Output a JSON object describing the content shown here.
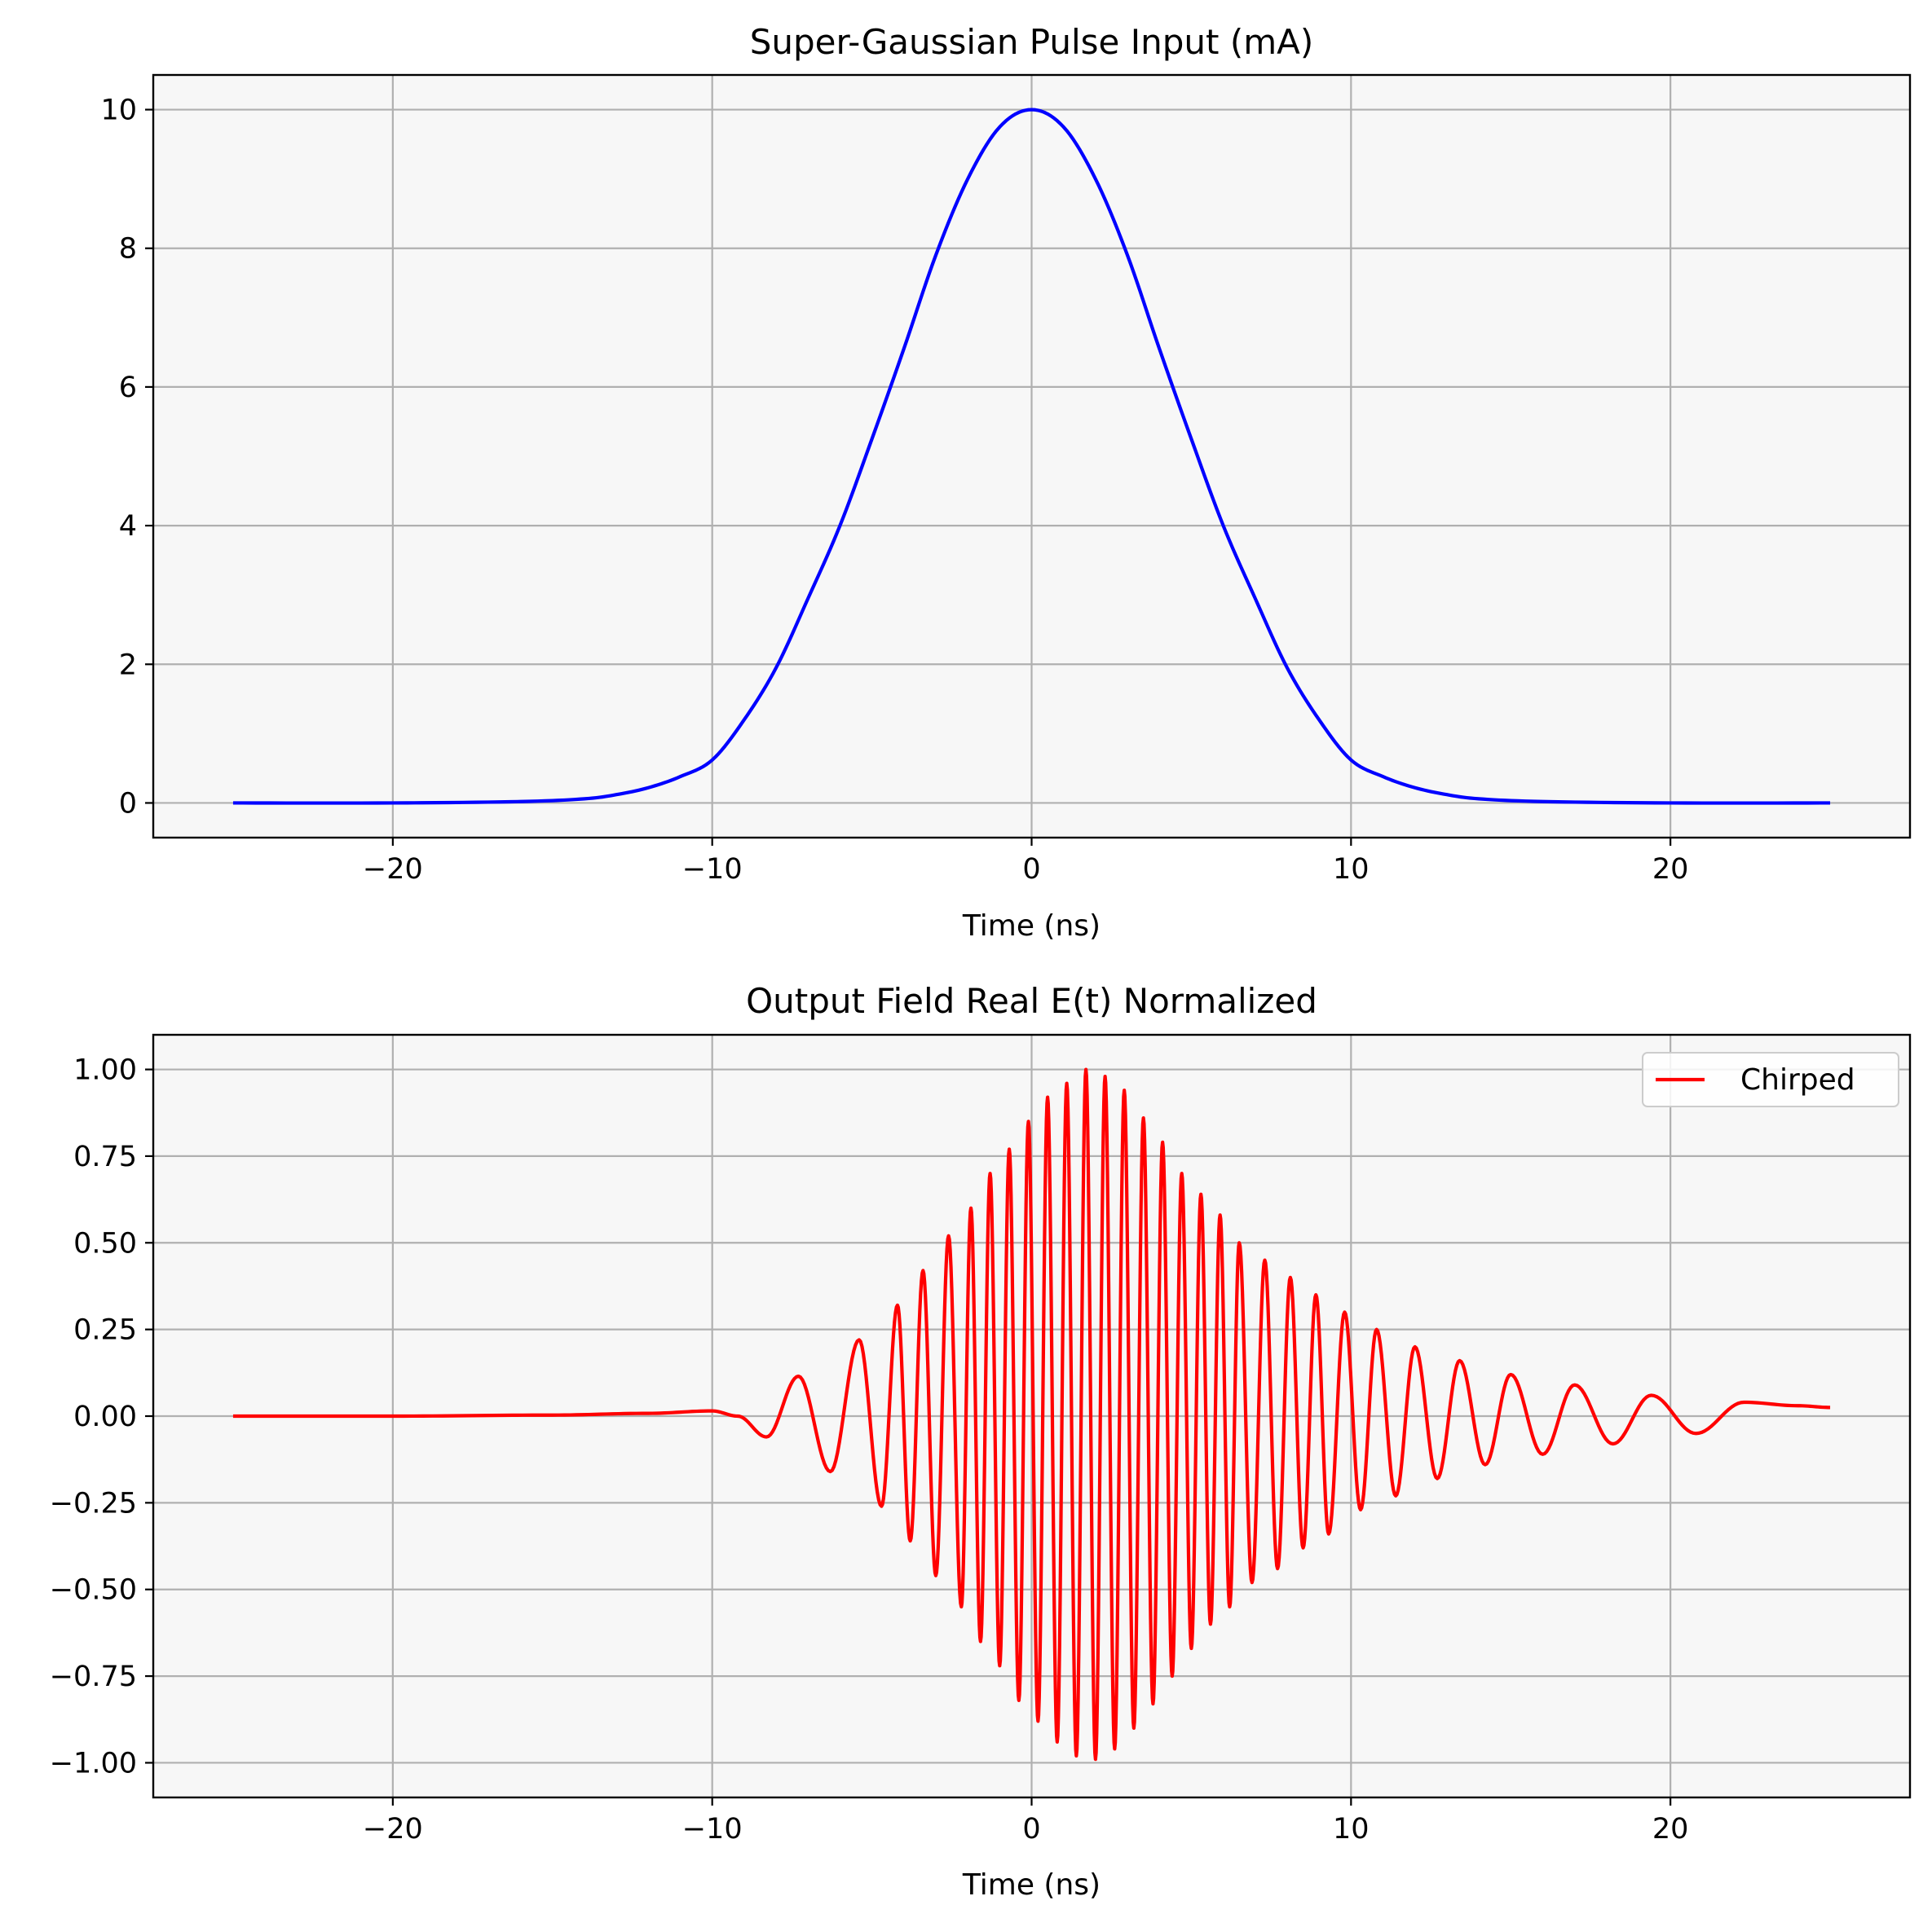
{
  "chart_data": [
    {
      "type": "line",
      "title": "Super-Gaussian Pulse Input (mA)",
      "xlabel": "Time (ns)",
      "ylabel": "",
      "xlim": [
        -27.5,
        27.5
      ],
      "ylim": [
        -0.5,
        10.5
      ],
      "xticks": [
        -20,
        -10,
        0,
        10,
        20
      ],
      "xtick_labels": [
        "−20",
        "−10",
        "0",
        "10",
        "20"
      ],
      "yticks": [
        0,
        2,
        4,
        6,
        8,
        10
      ],
      "ytick_labels": [
        "0",
        "2",
        "4",
        "6",
        "8",
        "10"
      ],
      "grid": true,
      "legend": null,
      "background": "#f7f7f7",
      "series": [
        {
          "color": "#0000ff",
          "x": [
            -25,
            -20,
            -16,
            -14,
            -13,
            -12,
            -11,
            -10,
            -9,
            -8,
            -7,
            -6,
            -5,
            -4,
            -3,
            -2,
            -1,
            0,
            1,
            2,
            3,
            4,
            5,
            6,
            7,
            8,
            9,
            10,
            11,
            12,
            13,
            14,
            16,
            20,
            25
          ],
          "y": [
            0.0,
            0.0,
            0.02,
            0.06,
            0.12,
            0.22,
            0.38,
            0.62,
            1.2,
            1.95,
            2.95,
            4.0,
            5.25,
            6.55,
            7.9,
            9.0,
            9.75,
            10.0,
            9.75,
            9.0,
            7.9,
            6.55,
            5.25,
            4.0,
            2.95,
            1.95,
            1.2,
            0.62,
            0.38,
            0.22,
            0.12,
            0.06,
            0.02,
            0.0,
            0.0
          ]
        }
      ]
    },
    {
      "type": "line",
      "title": "Output Field Real E(t) Normalized",
      "xlabel": "Time (ns)",
      "ylabel": "",
      "xlim": [
        -27.5,
        27.5
      ],
      "ylim": [
        -1.1,
        1.1
      ],
      "xticks": [
        -20,
        -10,
        0,
        10,
        20
      ],
      "xtick_labels": [
        "−20",
        "−10",
        "0",
        "10",
        "20"
      ],
      "yticks": [
        -1.0,
        -0.75,
        -0.5,
        -0.25,
        0.0,
        0.25,
        0.5,
        0.75,
        1.0
      ],
      "ytick_labels": [
        "−1.00",
        "−0.75",
        "−0.50",
        "−0.25",
        "0.00",
        "0.25",
        "0.50",
        "0.75",
        "1.00"
      ],
      "grid": true,
      "legend": "top-right",
      "background": "#f7f7f7",
      "series": [
        {
          "name": "Chirped",
          "color": "#ff0000",
          "x": [
            -25.0,
            -20.0,
            -15.0,
            -12.0,
            -10.0,
            -9.2,
            -8.3,
            -7.3,
            -6.3,
            -5.4,
            -4.7,
            -4.2,
            -3.8,
            -3.4,
            -3.0,
            -2.6,
            -2.2,
            -1.9,
            -1.6,
            -1.3,
            -1.0,
            -0.7,
            -0.4,
            -0.1,
            0.2,
            0.5,
            0.8,
            1.1,
            1.4,
            1.7,
            2.0,
            2.3,
            2.6,
            2.9,
            3.2,
            3.5,
            3.8,
            4.1,
            4.4,
            4.7,
            5.0,
            5.3,
            5.6,
            5.9,
            6.2,
            6.5,
            6.9,
            7.3,
            7.7,
            8.1,
            8.5,
            8.9,
            9.3,
            9.8,
            10.3,
            10.8,
            11.4,
            12.0,
            12.7,
            13.4,
            14.2,
            15.0,
            16.0,
            17.0,
            18.2,
            19.4,
            20.8,
            22.3,
            24.0,
            25.0
          ],
          "y": [
            0.0,
            0.0,
            0.003,
            0.008,
            0.015,
            0.0,
            -0.06,
            0.115,
            -0.16,
            0.22,
            -0.26,
            0.32,
            -0.36,
            0.42,
            -0.46,
            0.52,
            -0.55,
            0.6,
            -0.65,
            0.7,
            -0.72,
            0.77,
            -0.82,
            0.85,
            -0.88,
            0.92,
            -0.94,
            0.96,
            -0.98,
            1.0,
            -0.99,
            0.98,
            -0.96,
            0.94,
            -0.9,
            0.86,
            -0.83,
            0.79,
            -0.75,
            0.7,
            -0.67,
            0.64,
            -0.6,
            0.58,
            -0.55,
            0.5,
            -0.48,
            0.45,
            -0.44,
            0.4,
            -0.38,
            0.35,
            -0.34,
            0.3,
            -0.27,
            0.25,
            -0.23,
            0.2,
            -0.18,
            0.16,
            -0.14,
            0.12,
            -0.11,
            0.09,
            -0.08,
            0.06,
            -0.05,
            0.04,
            0.03,
            0.025
          ]
        }
      ]
    }
  ]
}
